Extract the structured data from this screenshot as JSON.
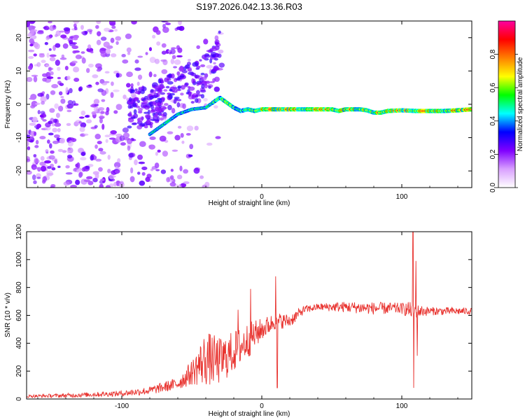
{
  "title": "S197.2026.042.13.36.R03",
  "chart_data": [
    {
      "type": "heatmap",
      "name": "spectrogram",
      "xlabel": "Height of straight line (km)",
      "ylabel": "Frequency (Hz)",
      "xlim": [
        -168,
        150
      ],
      "ylim": [
        -25,
        25
      ],
      "xticks": [
        -100,
        0,
        100
      ],
      "yticks": [
        -20,
        -10,
        0,
        10,
        20
      ],
      "colorbar": {
        "label": "Normalized spectral amplitude",
        "range": [
          0,
          1
        ],
        "ticks": [
          0.0,
          0.2,
          0.4,
          0.6,
          0.8
        ],
        "tick_labels": [
          "0.0",
          "0.2",
          "0.4",
          "0.6",
          "0.8"
        ],
        "colors": [
          "#ffffff",
          "#d9a0ff",
          "#8000ff",
          "#0000ff",
          "#00ffff",
          "#00ff00",
          "#ffff00",
          "#ff8000",
          "#ff0000",
          "#ff00a0"
        ]
      },
      "ridge": {
        "x": [
          -80,
          -70,
          -60,
          -50,
          -40,
          -35,
          -30,
          -25,
          -20,
          -15,
          -10,
          -5,
          0,
          10,
          20,
          30,
          40,
          50,
          55,
          60,
          70,
          75,
          80,
          85,
          90,
          100,
          110,
          120,
          130,
          140,
          150
        ],
        "y": [
          -9,
          -6,
          -3,
          -1.5,
          -1,
          0.5,
          2,
          0.5,
          -1,
          -2,
          -1.5,
          -2,
          -1.5,
          -1.5,
          -1.5,
          -1.5,
          -1.5,
          -1.5,
          -2,
          -1.5,
          -1.5,
          -1.8,
          -2.5,
          -2.5,
          -2,
          -1.8,
          -2,
          -2,
          -2,
          -1.8,
          -1.5
        ]
      }
    },
    {
      "type": "line",
      "name": "snr",
      "xlabel": "Height of straight line (km)",
      "ylabel": "SNR (10 * v/v)",
      "xlim": [
        -168,
        150
      ],
      "ylim": [
        0,
        1200
      ],
      "xticks": [
        -100,
        0,
        100
      ],
      "yticks": [
        0,
        200,
        400,
        600,
        800,
        1000,
        1200
      ],
      "color": "#e8322e",
      "envelope": {
        "x": [
          -168,
          -140,
          -100,
          -80,
          -60,
          -50,
          -40,
          -30,
          -20,
          -10,
          0,
          10,
          20,
          30,
          40,
          60,
          80,
          100,
          105,
          110,
          120,
          150
        ],
        "y": [
          20,
          25,
          40,
          60,
          110,
          190,
          290,
          270,
          340,
          420,
          500,
          560,
          560,
          640,
          660,
          660,
          650,
          650,
          640,
          630,
          630,
          630
        ]
      },
      "noise": [
        10,
        15,
        20,
        30,
        45,
        90,
        200,
        170,
        150,
        130,
        80,
        60,
        50,
        30,
        25,
        40,
        45,
        40,
        60,
        50,
        30,
        25
      ],
      "spikes": [
        {
          "x": -17,
          "y": 640
        },
        {
          "x": -8,
          "y": 790
        },
        {
          "x": 10,
          "y": 880
        },
        {
          "x": 11,
          "y": 80
        },
        {
          "x": 108,
          "y": 1200
        },
        {
          "x": 108.5,
          "y": 80
        },
        {
          "x": 110,
          "y": 990
        },
        {
          "x": 111,
          "y": 310
        }
      ]
    }
  ]
}
